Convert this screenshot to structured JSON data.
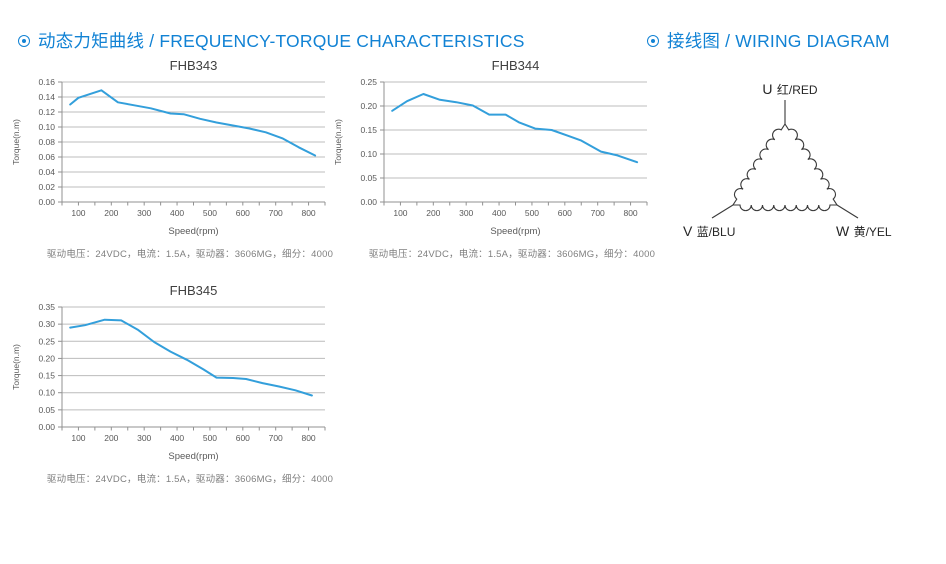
{
  "header": {
    "left_title": "动态力矩曲线 / FREQUENCY-TORQUE CHARACTERISTICS",
    "right_title": "接线图 / WIRING DIAGRAM",
    "accent_color": "#1182d4"
  },
  "chart_data": [
    {
      "type": "line",
      "title": "FHB343",
      "xlabel": "Speed(rpm)",
      "ylabel": "Torque(n.m)",
      "caption": "驱动电压：24VDC，电流：1.5A，驱动器：3606MG，细分：4000",
      "xlim": [
        50,
        850
      ],
      "ylim": [
        0,
        0.16
      ],
      "y_tick_step": 0.02,
      "x_tick_labels": [
        100,
        200,
        300,
        400,
        500,
        600,
        700,
        800
      ],
      "x_minor_tick_step": 50,
      "grid": "horizontal",
      "legend": "none",
      "line_color": "#339fdb",
      "series": [
        {
          "name": "torque",
          "x": [
            75,
            100,
            170,
            220,
            270,
            320,
            380,
            420,
            470,
            520,
            570,
            620,
            670,
            720,
            770,
            820
          ],
          "y": [
            0.13,
            0.139,
            0.149,
            0.133,
            0.129,
            0.125,
            0.118,
            0.117,
            0.111,
            0.106,
            0.102,
            0.098,
            0.093,
            0.085,
            0.073,
            0.062
          ]
        }
      ]
    },
    {
      "type": "line",
      "title": "FHB344",
      "xlabel": "Speed(rpm)",
      "ylabel": "Torque(n.m)",
      "caption": "驱动电压：24VDC，电流：1.5A，驱动器：3606MG，细分：4000",
      "xlim": [
        50,
        850
      ],
      "ylim": [
        0,
        0.25
      ],
      "y_tick_step": 0.05,
      "x_tick_labels": [
        100,
        200,
        300,
        400,
        500,
        600,
        700,
        800
      ],
      "x_minor_tick_step": 50,
      "grid": "horizontal",
      "legend": "none",
      "line_color": "#339fdb",
      "series": [
        {
          "name": "torque",
          "x": [
            75,
            120,
            170,
            220,
            270,
            320,
            370,
            420,
            460,
            510,
            560,
            610,
            650,
            710,
            760,
            820
          ],
          "y": [
            0.19,
            0.21,
            0.225,
            0.213,
            0.208,
            0.201,
            0.182,
            0.182,
            0.166,
            0.153,
            0.15,
            0.138,
            0.128,
            0.105,
            0.097,
            0.083
          ]
        }
      ]
    },
    {
      "type": "line",
      "title": "FHB345",
      "xlabel": "Speed(rpm)",
      "ylabel": "Torque(n.m)",
      "caption": "驱动电压：24VDC，电流：1.5A，驱动器：3606MG，细分：4000",
      "xlim": [
        50,
        850
      ],
      "ylim": [
        0,
        0.35
      ],
      "y_tick_step": 0.05,
      "x_tick_labels": [
        100,
        200,
        300,
        400,
        500,
        600,
        700,
        800
      ],
      "x_minor_tick_step": 50,
      "grid": "horizontal",
      "legend": "none",
      "line_color": "#339fdb",
      "series": [
        {
          "name": "torque",
          "x": [
            75,
            120,
            180,
            230,
            280,
            330,
            380,
            430,
            480,
            520,
            570,
            610,
            660,
            710,
            760,
            810
          ],
          "y": [
            0.29,
            0.297,
            0.313,
            0.311,
            0.284,
            0.248,
            0.22,
            0.196,
            0.168,
            0.144,
            0.143,
            0.14,
            0.128,
            0.118,
            0.107,
            0.092
          ]
        }
      ]
    }
  ],
  "wiring_diagram": {
    "connection": "delta",
    "terminals": [
      {
        "id": "U",
        "label": "红/RED"
      },
      {
        "id": "V",
        "label": "蓝/BLU"
      },
      {
        "id": "W",
        "label": "黄/YEL"
      }
    ]
  },
  "colors": {
    "axis": "#919191",
    "grid": "#bcbcbc",
    "tick_text": "#595959",
    "chart_title": "#404040",
    "caption_text": "#7f7f7f",
    "wiring_line": "#3a3a3a"
  }
}
